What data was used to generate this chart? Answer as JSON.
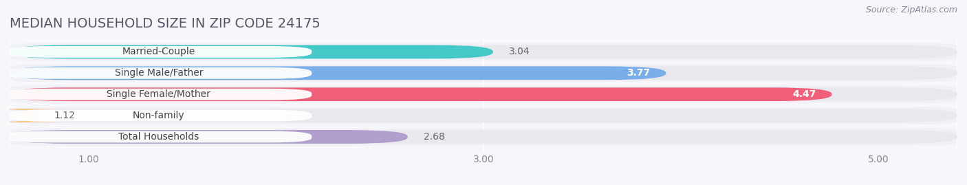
{
  "title": "MEDIAN HOUSEHOLD SIZE IN ZIP CODE 24175",
  "source": "Source: ZipAtlas.com",
  "categories": [
    "Married-Couple",
    "Single Male/Father",
    "Single Female/Mother",
    "Non-family",
    "Total Households"
  ],
  "values": [
    3.04,
    3.77,
    4.47,
    1.12,
    2.68
  ],
  "bar_colors": [
    "#45c8c8",
    "#7aaee8",
    "#f0607a",
    "#f5c98a",
    "#b09fcc"
  ],
  "xlim_start": 0.6,
  "xlim_end": 5.4,
  "data_min": 1.0,
  "data_max": 5.0,
  "xticks": [
    1.0,
    3.0,
    5.0
  ],
  "xtick_labels": [
    "1.00",
    "3.00",
    "5.00"
  ],
  "background_color": "#f7f7fb",
  "bar_bg_color": "#e8e8ee",
  "row_bg_color": "#f0f0f6",
  "label_bg_color": "#ffffff",
  "title_fontsize": 14,
  "label_fontsize": 10,
  "value_fontsize": 10,
  "source_fontsize": 9,
  "title_color": "#555566",
  "label_color": "#444444",
  "value_color_inside": "#ffffff",
  "value_color_outside": "#666666",
  "source_color": "#888899"
}
